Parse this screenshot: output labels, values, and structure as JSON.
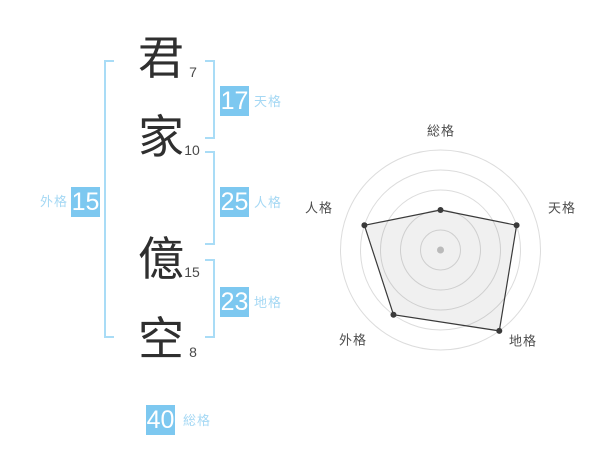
{
  "name": {
    "characters": [
      {
        "char": "君",
        "strokes": "7"
      },
      {
        "char": "家",
        "strokes": "10"
      },
      {
        "char": "億",
        "strokes": "15"
      },
      {
        "char": "空",
        "strokes": "8"
      }
    ]
  },
  "kaku": {
    "tenkaku": {
      "label": "天格",
      "value": "17"
    },
    "jinkaku": {
      "label": "人格",
      "value": "25"
    },
    "chikaku": {
      "label": "地格",
      "value": "23"
    },
    "gaikaku": {
      "label": "外格",
      "value": "15"
    },
    "soukaku": {
      "label": "総格",
      "value": "40"
    }
  },
  "colors": {
    "badge_blue": "#7dc8f0",
    "label_blue": "#a5d8f4",
    "bracket_blue": "#a9dcf6",
    "kanji_text": "#2f2f2f",
    "chart_label": "#4d4d4d",
    "ring_gray": "#dcdcdc",
    "polygon_stroke": "#3a3a3a",
    "center_dot": "#c6c6c6"
  },
  "chart_data": {
    "type": "radar",
    "title": "",
    "axes": [
      "総格",
      "天格",
      "地格",
      "外格",
      "人格"
    ],
    "values": [
      2,
      4,
      5,
      4,
      4
    ],
    "scale": {
      "min": 0,
      "max": 5
    },
    "ring_levels": [
      1,
      2,
      3,
      4,
      5
    ],
    "angles_deg": [
      90,
      18,
      -54,
      -126,
      162
    ],
    "grid": "concentric-circles",
    "legend": "none",
    "fill": "rgba(0,0,0,0.06)"
  }
}
